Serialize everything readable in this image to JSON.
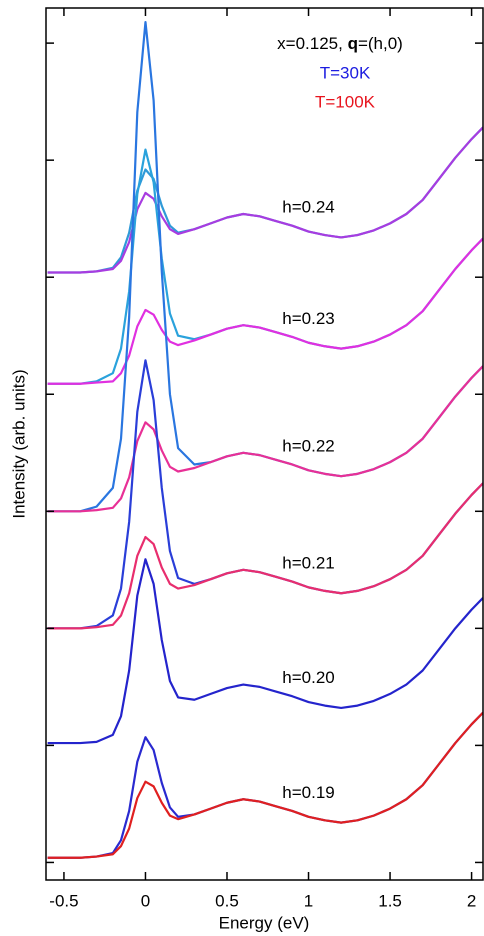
{
  "chart_data": {
    "type": "line",
    "title": [
      "x=0.125, ",
      "q",
      "=(h,0)"
    ],
    "x_label": "Energy (eV)",
    "y_label": "Intensity (arb. units)",
    "xlim": [
      -0.61,
      2.07
    ],
    "xticks": [
      -0.5,
      0,
      0.5,
      1,
      1.5,
      2
    ],
    "ylim": [
      0,
      7.45
    ],
    "yticks": [
      0.15,
      1.15,
      2.15,
      3.15,
      4.15,
      5.15,
      6.15,
      7.15
    ],
    "legend": {
      "position": "upper right",
      "entries": [
        {
          "label": "T=30K",
          "color": "#1c1ce0"
        },
        {
          "label": "T=100K",
          "color": "#e8141e"
        }
      ]
    },
    "x": [
      -0.6,
      -0.4,
      -0.3,
      -0.2,
      -0.15,
      -0.1,
      -0.05,
      0,
      0.05,
      0.1,
      0.15,
      0.2,
      0.3,
      0.4,
      0.5,
      0.6,
      0.7,
      0.8,
      0.9,
      1.0,
      1.1,
      1.2,
      1.3,
      1.4,
      1.5,
      1.6,
      1.7,
      1.8,
      1.9,
      2.0,
      2.07
    ],
    "groups": [
      {
        "label": "h=0.24",
        "series": [
          {
            "color": "#2f9ad8",
            "values": [
              5.19,
              5.19,
              5.2,
              5.23,
              5.32,
              5.53,
              5.89,
              6.07,
              5.99,
              5.76,
              5.59,
              5.53,
              5.56,
              5.61,
              5.66,
              5.69,
              5.67,
              5.63,
              5.59,
              5.54,
              5.51,
              5.49,
              5.51,
              5.55,
              5.61,
              5.69,
              5.81,
              5.99,
              6.17,
              6.33,
              6.43
            ]
          },
          {
            "color": "#a83ce0",
            "values": [
              5.19,
              5.19,
              5.2,
              5.22,
              5.29,
              5.45,
              5.73,
              5.87,
              5.82,
              5.67,
              5.56,
              5.52,
              5.56,
              5.61,
              5.66,
              5.69,
              5.67,
              5.63,
              5.59,
              5.54,
              5.51,
              5.49,
              5.51,
              5.55,
              5.61,
              5.69,
              5.81,
              5.99,
              6.17,
              6.33,
              6.43
            ]
          }
        ]
      },
      {
        "label": "h=0.23",
        "series": [
          {
            "color": "#2aa2dc",
            "values": [
              4.24,
              4.24,
              4.26,
              4.33,
              4.54,
              5.03,
              5.86,
              6.24,
              5.96,
              5.31,
              4.84,
              4.65,
              4.62,
              4.66,
              4.71,
              4.74,
              4.72,
              4.68,
              4.64,
              4.59,
              4.56,
              4.54,
              4.56,
              4.6,
              4.66,
              4.74,
              4.86,
              5.04,
              5.22,
              5.38,
              5.48
            ]
          },
          {
            "color": "#e030e0",
            "values": [
              4.24,
              4.24,
              4.25,
              4.26,
              4.33,
              4.48,
              4.73,
              4.87,
              4.83,
              4.7,
              4.6,
              4.57,
              4.61,
              4.66,
              4.71,
              4.74,
              4.72,
              4.68,
              4.64,
              4.59,
              4.56,
              4.54,
              4.56,
              4.6,
              4.66,
              4.74,
              4.86,
              5.04,
              5.22,
              5.38,
              5.48
            ]
          }
        ]
      },
      {
        "label": "h=0.22",
        "series": [
          {
            "color": "#2a76e0",
            "values": [
              3.15,
              3.15,
              3.19,
              3.35,
              3.77,
              4.81,
              6.56,
              7.33,
              6.66,
              5.2,
              4.15,
              3.69,
              3.55,
              3.57,
              3.62,
              3.65,
              3.63,
              3.59,
              3.55,
              3.5,
              3.47,
              3.45,
              3.47,
              3.51,
              3.57,
              3.65,
              3.77,
              3.95,
              4.13,
              4.29,
              4.39
            ]
          },
          {
            "color": "#e83096",
            "values": [
              3.15,
              3.15,
              3.16,
              3.18,
              3.26,
              3.44,
              3.75,
              3.91,
              3.85,
              3.67,
              3.53,
              3.49,
              3.52,
              3.57,
              3.62,
              3.65,
              3.63,
              3.59,
              3.55,
              3.5,
              3.47,
              3.45,
              3.47,
              3.51,
              3.57,
              3.65,
              3.77,
              3.95,
              4.13,
              4.29,
              4.39
            ]
          }
        ]
      },
      {
        "label": "h=0.21",
        "series": [
          {
            "color": "#2a3ed8",
            "values": [
              2.15,
              2.15,
              2.17,
              2.26,
              2.49,
              3.06,
              4.0,
              4.44,
              4.1,
              3.35,
              2.81,
              2.58,
              2.53,
              2.57,
              2.62,
              2.65,
              2.63,
              2.59,
              2.55,
              2.5,
              2.47,
              2.45,
              2.47,
              2.51,
              2.57,
              2.65,
              2.77,
              2.95,
              3.13,
              3.29,
              3.39
            ]
          },
          {
            "color": "#e82e6e",
            "values": [
              2.15,
              2.15,
              2.16,
              2.18,
              2.26,
              2.45,
              2.77,
              2.93,
              2.87,
              2.67,
              2.53,
              2.49,
              2.52,
              2.57,
              2.62,
              2.65,
              2.63,
              2.59,
              2.55,
              2.5,
              2.47,
              2.45,
              2.47,
              2.51,
              2.57,
              2.65,
              2.77,
              2.95,
              3.13,
              3.29,
              3.39
            ]
          }
        ]
      },
      {
        "label": "h=0.20",
        "series": [
          {
            "color": "#2424cc",
            "values": [
              1.17,
              1.17,
              1.18,
              1.24,
              1.4,
              1.79,
              2.43,
              2.74,
              2.53,
              2.05,
              1.7,
              1.56,
              1.54,
              1.59,
              1.64,
              1.67,
              1.65,
              1.61,
              1.57,
              1.52,
              1.49,
              1.47,
              1.49,
              1.53,
              1.59,
              1.67,
              1.79,
              1.97,
              2.15,
              2.31,
              2.41
            ]
          }
        ]
      },
      {
        "label": "h=0.19",
        "series": [
          {
            "color": "#2a2ad0",
            "values": [
              0.19,
              0.19,
              0.2,
              0.23,
              0.34,
              0.59,
              1.01,
              1.22,
              1.11,
              0.83,
              0.62,
              0.54,
              0.56,
              0.61,
              0.66,
              0.69,
              0.67,
              0.63,
              0.59,
              0.54,
              0.51,
              0.49,
              0.51,
              0.55,
              0.61,
              0.69,
              0.81,
              0.99,
              1.17,
              1.33,
              1.43
            ]
          },
          {
            "color": "#e02020",
            "values": [
              0.19,
              0.19,
              0.2,
              0.22,
              0.29,
              0.44,
              0.7,
              0.84,
              0.8,
              0.66,
              0.55,
              0.52,
              0.56,
              0.61,
              0.66,
              0.69,
              0.67,
              0.63,
              0.59,
              0.54,
              0.51,
              0.49,
              0.51,
              0.55,
              0.61,
              0.69,
              0.81,
              0.99,
              1.17,
              1.33,
              1.43
            ]
          }
        ]
      }
    ]
  }
}
